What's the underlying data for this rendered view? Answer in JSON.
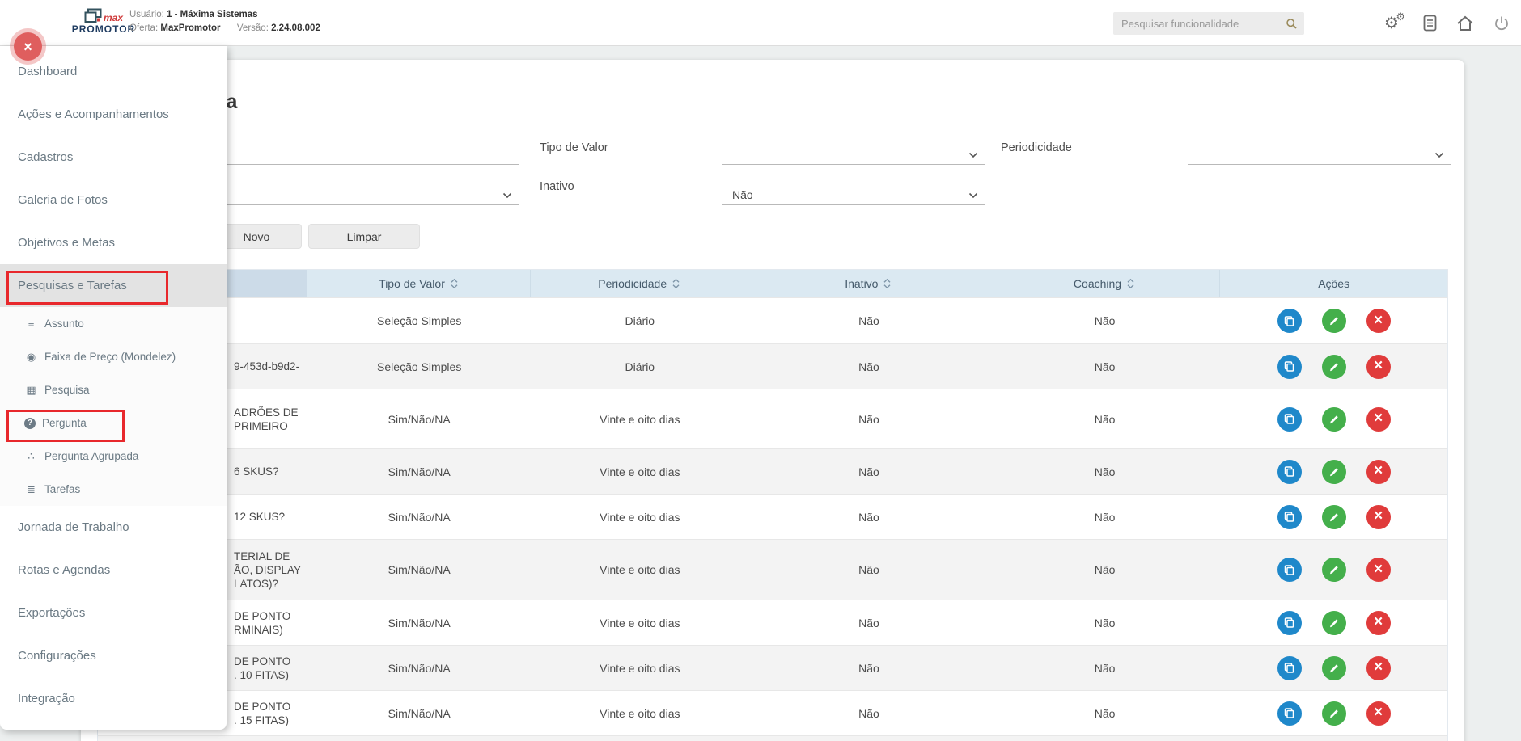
{
  "header": {
    "logo": {
      "line1": "max",
      "line2": "PROMOTOR"
    },
    "user_info": {
      "usuario_label": "Usuário:",
      "usuario_value": "1 - Máxima Sistemas",
      "oferta_label": "Oferta:",
      "oferta_value": "MaxPromotor",
      "versao_label": "Versão:",
      "versao_value": "2.24.08.002"
    },
    "search_placeholder": "Pesquisar funcionalidade",
    "icons": [
      "settings-gears-icon",
      "report-icon",
      "home-icon",
      "power-icon"
    ]
  },
  "sidebar": {
    "items": [
      {
        "label": "Dashboard",
        "type": "top"
      },
      {
        "label": "Ações e Acompanhamentos",
        "type": "top"
      },
      {
        "label": "Cadastros",
        "type": "top"
      },
      {
        "label": "Galeria de Fotos",
        "type": "top"
      },
      {
        "label": "Objetivos e Metas",
        "type": "top"
      },
      {
        "label": "Pesquisas e Tarefas",
        "type": "top",
        "active": true,
        "annotated": true
      },
      {
        "label": "Assunto",
        "type": "sub",
        "icon": "list-icon",
        "glyph": "≡"
      },
      {
        "label": "Faixa de Preço (Mondelez)",
        "type": "sub",
        "icon": "price-range-icon",
        "glyph": "◉"
      },
      {
        "label": "Pesquisa",
        "type": "sub",
        "icon": "table-icon",
        "glyph": "▦"
      },
      {
        "label": "Pergunta",
        "type": "sub",
        "icon": "question-icon",
        "glyph": "?",
        "annotated": true
      },
      {
        "label": "Pergunta Agrupada",
        "type": "sub",
        "icon": "hierarchy-icon",
        "glyph": "∴"
      },
      {
        "label": "Tarefas",
        "type": "sub",
        "icon": "tasks-list-icon",
        "glyph": "≣"
      },
      {
        "label": "Jornada de Trabalho",
        "type": "top"
      },
      {
        "label": "Rotas e Agendas",
        "type": "top"
      },
      {
        "label": "Exportações",
        "type": "top"
      },
      {
        "label": "Configurações",
        "type": "top"
      },
      {
        "label": "Integração",
        "type": "top"
      }
    ]
  },
  "page": {
    "title": "Pergunta"
  },
  "filters": {
    "tipo_de_valor_label": "Tipo de Valor",
    "periodicidade_label": "Periodicidade",
    "inativo_label": "Inativo",
    "inativo_value": "Não"
  },
  "buttons": {
    "novo": "Novo",
    "limpar": "Limpar"
  },
  "table": {
    "headers": [
      {
        "label": "",
        "sortable": false
      },
      {
        "label": "Tipo de Valor",
        "sortable": true
      },
      {
        "label": "Periodicidade",
        "sortable": true
      },
      {
        "label": "Inativo",
        "sortable": true
      },
      {
        "label": "Coaching",
        "sortable": true
      },
      {
        "label": "Ações",
        "sortable": false
      }
    ],
    "rows": [
      {
        "descricao_lines": [],
        "tipo_valor": "Seleção Simples",
        "periodicidade": "Diário",
        "inativo": "Não",
        "coaching": "Não"
      },
      {
        "descricao_lines": [
          "9-453d-b9d2-"
        ],
        "tipo_valor": "Seleção Simples",
        "periodicidade": "Diário",
        "inativo": "Não",
        "coaching": "Não"
      },
      {
        "descricao_lines": [
          "ADRÕES DE",
          "PRIMEIRO"
        ],
        "tipo_valor": "Sim/Não/NA",
        "periodicidade": "Vinte e oito dias",
        "inativo": "Não",
        "coaching": "Não"
      },
      {
        "descricao_lines": [
          "6 SKUS?"
        ],
        "tipo_valor": "Sim/Não/NA",
        "periodicidade": "Vinte e oito dias",
        "inativo": "Não",
        "coaching": "Não"
      },
      {
        "descricao_lines": [
          "12 SKUS?"
        ],
        "tipo_valor": "Sim/Não/NA",
        "periodicidade": "Vinte e oito dias",
        "inativo": "Não",
        "coaching": "Não"
      },
      {
        "descricao_lines": [
          "TERIAL DE",
          "ÃO, DISPLAY",
          "LATOS)?"
        ],
        "tipo_valor": "Sim/Não/NA",
        "periodicidade": "Vinte e oito dias",
        "inativo": "Não",
        "coaching": "Não"
      },
      {
        "descricao_lines": [
          "DE PONTO",
          "RMINAIS)"
        ],
        "tipo_valor": "Sim/Não/NA",
        "periodicidade": "Vinte e oito dias",
        "inativo": "Não",
        "coaching": "Não"
      },
      {
        "descricao_lines": [
          "DE PONTO",
          ". 10 FITAS)"
        ],
        "tipo_valor": "Sim/Não/NA",
        "periodicidade": "Vinte e oito dias",
        "inativo": "Não",
        "coaching": "Não"
      },
      {
        "descricao_lines": [
          "DE PONTO",
          ". 15 FITAS)"
        ],
        "tipo_valor": "Sim/Não/NA",
        "periodicidade": "Vinte e oito dias",
        "inativo": "Não",
        "coaching": "Não"
      }
    ],
    "row_actions": [
      {
        "name": "duplicate",
        "color": "#1f88ca"
      },
      {
        "name": "edit",
        "color": "#44af4b"
      },
      {
        "name": "delete",
        "color": "#e03b3b"
      }
    ]
  },
  "colors": {
    "annotation": "#e8282c",
    "close_button": "#df5e5e",
    "table_header_bg": "#dbe9f2"
  }
}
